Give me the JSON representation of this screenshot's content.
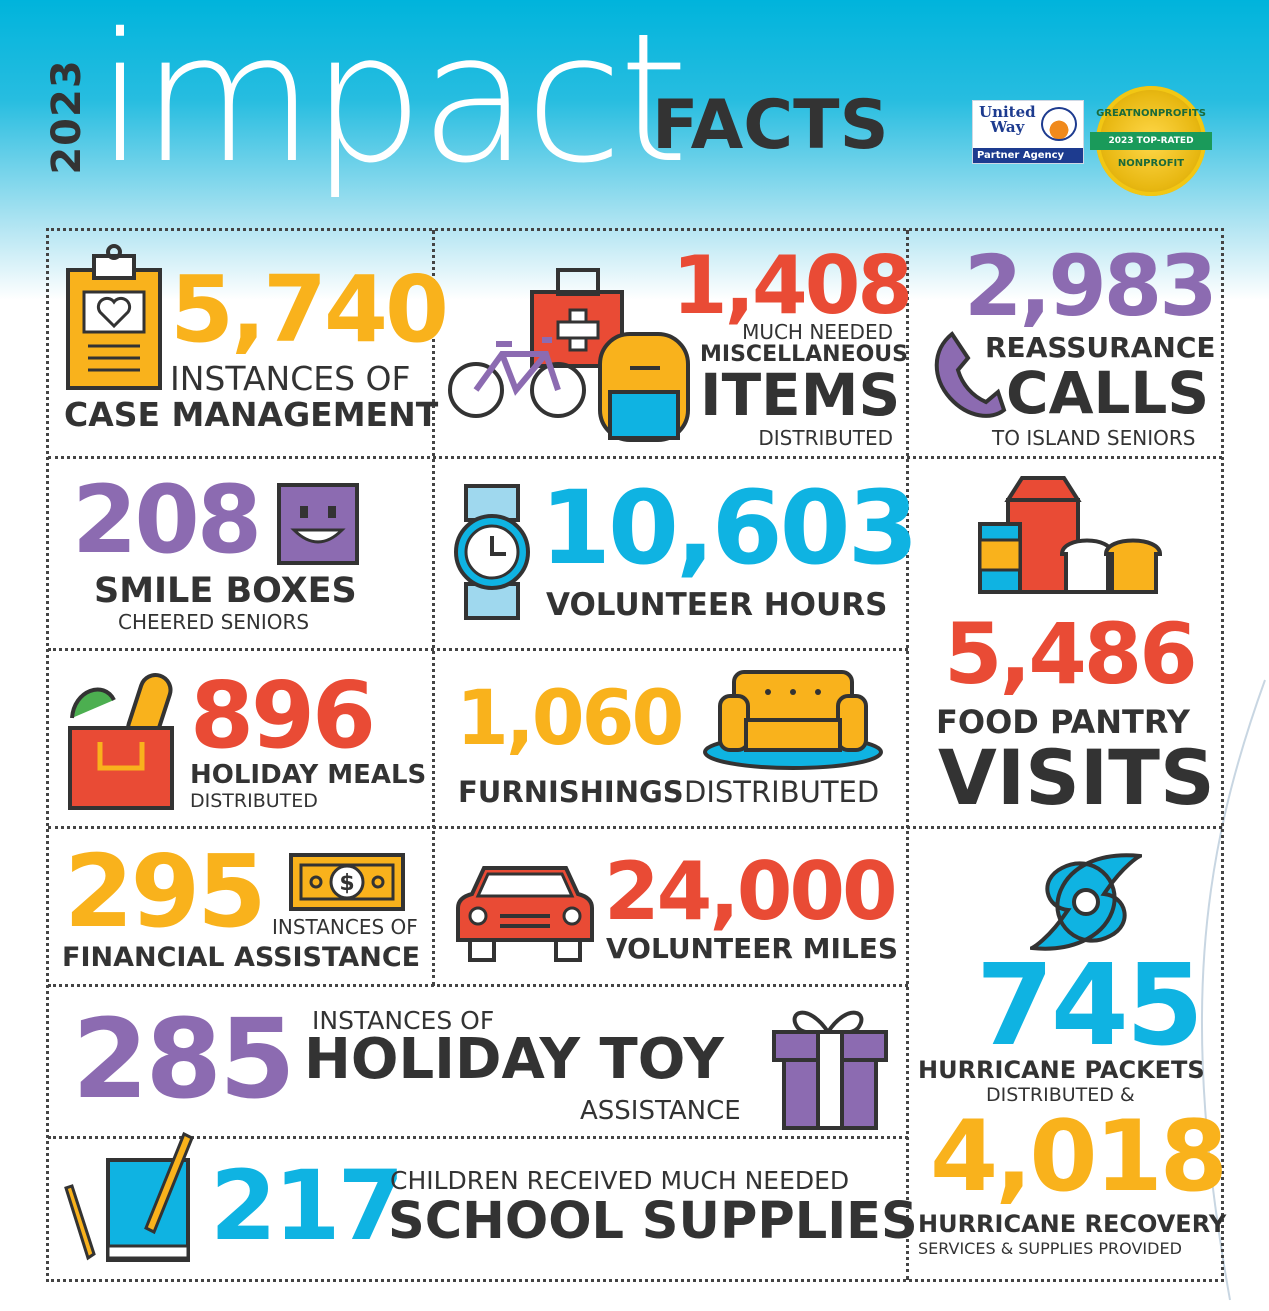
{
  "header": {
    "year": "2023",
    "title_main": "impact",
    "title_sub": "FACTS",
    "badge_united_way_line1": "United",
    "badge_united_way_line2": "Way",
    "badge_united_way_partner": "Partner Agency",
    "badge_seal_top": "GREATNONPROFITS",
    "badge_seal_band": "2023 TOP-RATED",
    "badge_seal_bottom": "NONPROFIT"
  },
  "facts": {
    "case_management": {
      "number": "5,740",
      "line1": "INSTANCES OF",
      "line2": "CASE MANAGEMENT"
    },
    "misc_items": {
      "number": "1,408",
      "line1": "MUCH NEEDED",
      "line2": "MISCELLANEOUS",
      "line3": "ITEMS",
      "line4": "DISTRIBUTED"
    },
    "reassurance_calls": {
      "number": "2,983",
      "line1": "REASSURANCE",
      "line2": "CALLS",
      "line3": "TO ISLAND SENIORS"
    },
    "smile_boxes": {
      "number": "208",
      "line1": "SMILE BOXES",
      "line2": "CHEERED SENIORS"
    },
    "volunteer_hours": {
      "number": "10,603",
      "line1": "VOLUNTEER HOURS"
    },
    "food_pantry": {
      "number": "5,486",
      "line1": "FOOD PANTRY",
      "line2": "VISITS"
    },
    "holiday_meals": {
      "number": "896",
      "line1": "HOLIDAY MEALS",
      "line2": "DISTRIBUTED"
    },
    "furnishings": {
      "number": "1,060",
      "line1_bold": "FURNISHINGS",
      "line1_thin": "DISTRIBUTED"
    },
    "financial_assistance": {
      "number": "295",
      "line1": "INSTANCES OF",
      "line2": "FINANCIAL ASSISTANCE"
    },
    "volunteer_miles": {
      "number": "24,000",
      "line1": "VOLUNTEER MILES"
    },
    "holiday_toy": {
      "number": "285",
      "line1": "INSTANCES OF",
      "line2": "HOLIDAY TOY",
      "line3": "ASSISTANCE"
    },
    "hurricane": {
      "number1": "745",
      "line1": "HURRICANE PACKETS",
      "line2": "DISTRIBUTED &",
      "number2": "4,018",
      "line3": "HURRICANE RECOVERY",
      "line4": "SERVICES & SUPPLIES PROVIDED"
    },
    "school_supplies": {
      "number": "217",
      "line1": "CHILDREN RECEIVED MUCH NEEDED",
      "line2": "SCHOOL SUPPLIES"
    }
  },
  "colors": {
    "orange": "#f9b21c",
    "red": "#e94b35",
    "purple": "#8c6bb1",
    "blue": "#0fb3e2",
    "dark": "#333333"
  }
}
